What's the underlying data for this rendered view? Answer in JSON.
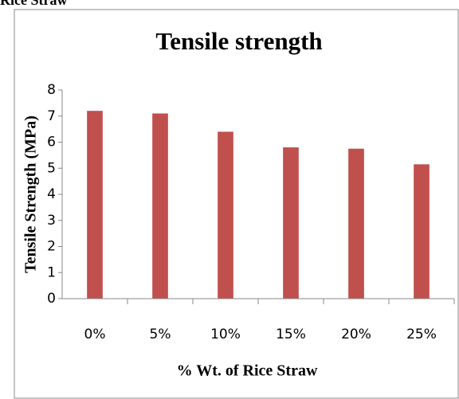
{
  "caption": "Rice Straw",
  "chart_data": {
    "type": "bar",
    "title": "Tensile strength",
    "x_label": "% Wt. of Rice Straw",
    "y_label": "Tensile Strength (MPa)",
    "categories": [
      "0%",
      "5%",
      "10%",
      "15%",
      "20%",
      "25%"
    ],
    "values": [
      7.2,
      7.1,
      6.4,
      5.8,
      5.75,
      5.15
    ],
    "color": "#c0504d",
    "ylim": [
      0,
      8
    ],
    "yticks": [
      0,
      1,
      2,
      3,
      4,
      5,
      6,
      7,
      8
    ],
    "grid": false
  }
}
